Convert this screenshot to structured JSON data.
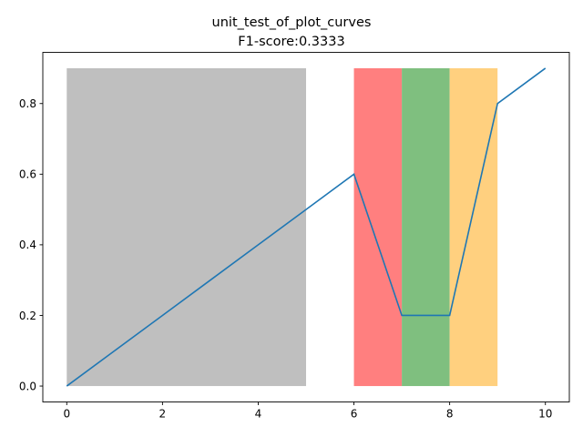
{
  "chart_data": {
    "type": "line",
    "title": "unit_test_of_plot_curves",
    "subtitle": "F1-score:0.3333",
    "xlabel": "",
    "ylabel": "",
    "xlim": [
      -0.5,
      10.5
    ],
    "ylim": [
      -0.045,
      0.945
    ],
    "grid": false,
    "x_ticks": [
      0,
      2,
      4,
      6,
      8,
      10
    ],
    "y_ticks": [
      0.0,
      0.2,
      0.4,
      0.6,
      0.8
    ],
    "x_tick_labels": [
      "0",
      "2",
      "4",
      "6",
      "8",
      "10"
    ],
    "y_tick_labels": [
      "0.0",
      "0.2",
      "0.4",
      "0.6",
      "0.8"
    ],
    "series": [
      {
        "x": [
          0,
          1,
          2,
          3,
          4,
          5,
          6,
          7,
          8,
          9,
          10
        ],
        "y": [
          0.0,
          0.1,
          0.2,
          0.3,
          0.4,
          0.5,
          0.6,
          0.2,
          0.2,
          0.8,
          0.9
        ],
        "color": "#1f77b4"
      }
    ],
    "spans": [
      {
        "x0": 0,
        "x1": 5,
        "y0": 0,
        "y1": 0.9,
        "color": "#bfbfbf"
      },
      {
        "x0": 6,
        "x1": 7,
        "y0": 0,
        "y1": 0.9,
        "color": "#ff7f7f"
      },
      {
        "x0": 7,
        "x1": 8,
        "y0": 0,
        "y1": 0.9,
        "color": "#7fbf7f"
      },
      {
        "x0": 8,
        "x1": 9,
        "y0": 0,
        "y1": 0.9,
        "color": "#ffd07f"
      }
    ]
  }
}
